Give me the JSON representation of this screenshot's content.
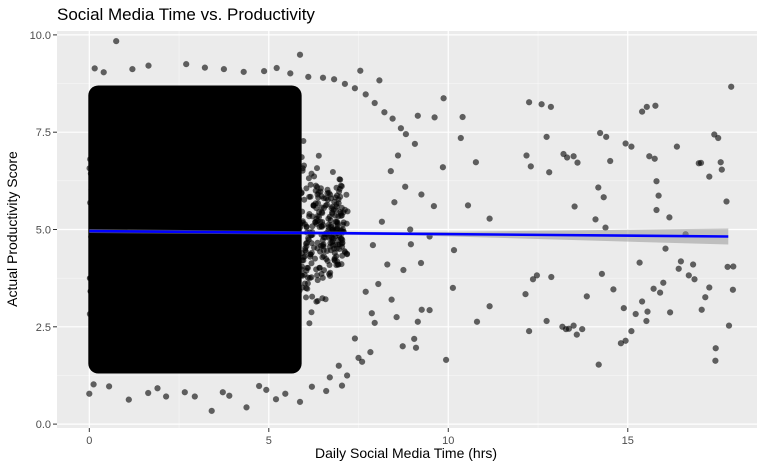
{
  "chart_data": {
    "type": "scatter",
    "title": "Social Media Time vs. Productivity",
    "xlabel": "Daily Social Media Time (hrs)",
    "ylabel": "Actual Productivity Score",
    "xlim": [
      -0.9,
      18.6
    ],
    "ylim": [
      -0.1,
      10.1
    ],
    "x_ticks": [
      0,
      5,
      10,
      15
    ],
    "x_tick_labels": [
      "0",
      "5",
      "10",
      "15"
    ],
    "y_ticks": [
      0,
      2.5,
      5,
      7.5,
      10
    ],
    "y_tick_labels": [
      "0.0",
      "2.5",
      "5.0",
      "7.5",
      "10.0"
    ],
    "grid": true,
    "legend": "none",
    "panel_background": "#ebebeb",
    "point_color": "#000000",
    "point_opacity": 0.6,
    "regression_line": {
      "color": "#0000ff",
      "x": [
        0,
        17.8
      ],
      "y": [
        4.96,
        4.82
      ],
      "confidence_band_color": "#999999"
    },
    "dense_region": {
      "x_range": [
        0,
        6.5
      ],
      "y_range": [
        1.3,
        8.7
      ]
    },
    "points": [
      [
        0.75,
        9.84
      ],
      [
        5.87,
        9.49
      ],
      [
        7.55,
        9.08
      ],
      [
        8.08,
        8.83
      ],
      [
        9.87,
        8.37
      ],
      [
        9.15,
        7.92
      ],
      [
        9.62,
        7.88
      ],
      [
        10.4,
        7.89
      ],
      [
        9.85,
        6.6
      ],
      [
        10.35,
        7.35
      ],
      [
        10.77,
        6.73
      ],
      [
        10.55,
        5.62
      ],
      [
        11.15,
        5.28
      ],
      [
        12.18,
        6.9
      ],
      [
        12.3,
        6.62
      ],
      [
        12.25,
        8.27
      ],
      [
        12.6,
        8.22
      ],
      [
        12.86,
        8.15
      ],
      [
        12.74,
        7.38
      ],
      [
        12.81,
        6.47
      ],
      [
        13.21,
        6.94
      ],
      [
        13.31,
        6.85
      ],
      [
        13.49,
        6.88
      ],
      [
        13.6,
        6.72
      ],
      [
        13.52,
        5.59
      ],
      [
        14.1,
        5.26
      ],
      [
        14.23,
        7.48
      ],
      [
        14.4,
        7.38
      ],
      [
        14.18,
        6.08
      ],
      [
        14.33,
        5.83
      ],
      [
        14.51,
        6.76
      ],
      [
        14.94,
        7.21
      ],
      [
        15.1,
        7.13
      ],
      [
        15.4,
        8.03
      ],
      [
        15.53,
        8.15
      ],
      [
        15.77,
        8.18
      ],
      [
        15.6,
        6.88
      ],
      [
        15.75,
        6.82
      ],
      [
        15.8,
        6.24
      ],
      [
        15.86,
        5.87
      ],
      [
        15.8,
        5.5
      ],
      [
        16.16,
        5.31
      ],
      [
        16.37,
        7.13
      ],
      [
        17.04,
        6.71
      ],
      [
        17.27,
        6.36
      ],
      [
        16.98,
        6.7
      ],
      [
        17.41,
        7.44
      ],
      [
        17.52,
        7.35
      ],
      [
        17.59,
        6.73
      ],
      [
        17.62,
        6.54
      ],
      [
        17.75,
        5.72
      ],
      [
        17.88,
        8.67
      ],
      [
        17.94,
        4.05
      ],
      [
        17.93,
        3.45
      ],
      [
        17.82,
        2.53
      ],
      [
        17.78,
        4.04
      ],
      [
        17.45,
        1.95
      ],
      [
        17.44,
        1.63
      ],
      [
        17.27,
        3.51
      ],
      [
        17.16,
        3.26
      ],
      [
        17.06,
        2.94
      ],
      [
        16.86,
        3.72
      ],
      [
        16.82,
        4.1
      ],
      [
        16.7,
        3.82
      ],
      [
        16.61,
        4.88
      ],
      [
        16.48,
        4.18
      ],
      [
        16.42,
        3.99
      ],
      [
        16.18,
        2.87
      ],
      [
        16.05,
        4.51
      ],
      [
        15.99,
        3.63
      ],
      [
        15.9,
        3.38
      ],
      [
        15.72,
        3.48
      ],
      [
        15.55,
        2.89
      ],
      [
        15.52,
        2.65
      ],
      [
        15.4,
        3.15
      ],
      [
        15.33,
        4.15
      ],
      [
        15.22,
        2.83
      ],
      [
        15.1,
        2.39
      ],
      [
        14.89,
        2.98
      ],
      [
        14.94,
        2.14
      ],
      [
        14.81,
        2.08
      ],
      [
        14.6,
        3.46
      ],
      [
        14.38,
        5.05
      ],
      [
        14.28,
        3.86
      ],
      [
        14.19,
        1.53
      ],
      [
        13.86,
        3.28
      ],
      [
        13.73,
        2.44
      ],
      [
        13.58,
        2.3
      ],
      [
        13.49,
        2.53
      ],
      [
        13.36,
        2.45
      ],
      [
        13.28,
        2.44
      ],
      [
        13.18,
        2.5
      ],
      [
        12.87,
        3.78
      ],
      [
        12.74,
        2.65
      ],
      [
        12.47,
        3.82
      ],
      [
        12.36,
        3.72
      ],
      [
        12.25,
        2.39
      ],
      [
        12.15,
        3.34
      ],
      [
        11.15,
        3.03
      ],
      [
        10.8,
        2.63
      ],
      [
        10.13,
        3.5
      ],
      [
        9.94,
        1.65
      ],
      [
        9.48,
        2.93
      ],
      [
        9.26,
        2.94
      ],
      [
        9.15,
        2.63
      ],
      [
        9.05,
        2.19
      ],
      [
        9.1,
        1.96
      ],
      [
        8.73,
        2.0
      ],
      [
        8.56,
        2.75
      ],
      [
        8.75,
        3.96
      ],
      [
        9.48,
        4.82
      ],
      [
        10.16,
        4.47
      ],
      [
        9.24,
        4.14
      ],
      [
        8.96,
        4.62
      ],
      [
        8.94,
        5.0
      ],
      [
        7.87,
        2.85
      ],
      [
        7.83,
        1.85
      ],
      [
        7.5,
        1.7
      ],
      [
        7.18,
        1.25
      ],
      [
        7.04,
        0.99
      ],
      [
        6.6,
        0.85
      ],
      [
        5.87,
        0.57
      ],
      [
        5.46,
        0.78
      ],
      [
        4.93,
        0.88
      ],
      [
        4.38,
        0.43
      ],
      [
        3.9,
        0.73
      ],
      [
        3.41,
        0.34
      ],
      [
        2.94,
        0.71
      ],
      [
        2.14,
        0.71
      ],
      [
        1.64,
        0.8
      ],
      [
        1.1,
        0.63
      ],
      [
        0.55,
        0.97
      ],
      [
        0.0,
        0.78
      ],
      [
        0.12,
        1.02
      ],
      [
        1.9,
        0.92
      ],
      [
        2.66,
        0.82
      ],
      [
        3.72,
        0.82
      ],
      [
        4.73,
        0.98
      ],
      [
        5.2,
        0.64
      ],
      [
        6.2,
        0.96
      ],
      [
        0.15,
        9.14
      ],
      [
        0.4,
        9.04
      ],
      [
        1.2,
        9.12
      ],
      [
        1.65,
        9.21
      ],
      [
        2.7,
        9.25
      ],
      [
        3.22,
        9.16
      ],
      [
        3.75,
        9.12
      ],
      [
        4.3,
        9.05
      ],
      [
        4.87,
        9.07
      ],
      [
        5.22,
        9.15
      ],
      [
        5.6,
        9.01
      ],
      [
        6.1,
        8.92
      ],
      [
        6.51,
        8.9
      ],
      [
        6.82,
        8.86
      ],
      [
        7.12,
        8.74
      ],
      [
        7.4,
        8.63
      ],
      [
        7.7,
        8.47
      ],
      [
        7.95,
        8.25
      ],
      [
        8.22,
        8.01
      ],
      [
        8.45,
        7.85
      ],
      [
        8.68,
        7.6
      ],
      [
        8.82,
        7.45
      ],
      [
        9.07,
        7.2
      ],
      [
        8.6,
        6.9
      ],
      [
        8.4,
        6.5
      ],
      [
        8.8,
        6.1
      ],
      [
        9.25,
        5.9
      ],
      [
        9.6,
        5.6
      ],
      [
        8.5,
        5.7
      ],
      [
        8.15,
        5.2
      ],
      [
        7.9,
        4.6
      ],
      [
        8.3,
        4.1
      ],
      [
        8.05,
        3.6
      ],
      [
        8.42,
        3.2
      ],
      [
        7.7,
        3.4
      ],
      [
        7.95,
        2.6
      ],
      [
        7.4,
        2.2
      ],
      [
        7.6,
        1.6
      ],
      [
        6.95,
        1.5
      ],
      [
        6.7,
        1.2
      ]
    ]
  }
}
